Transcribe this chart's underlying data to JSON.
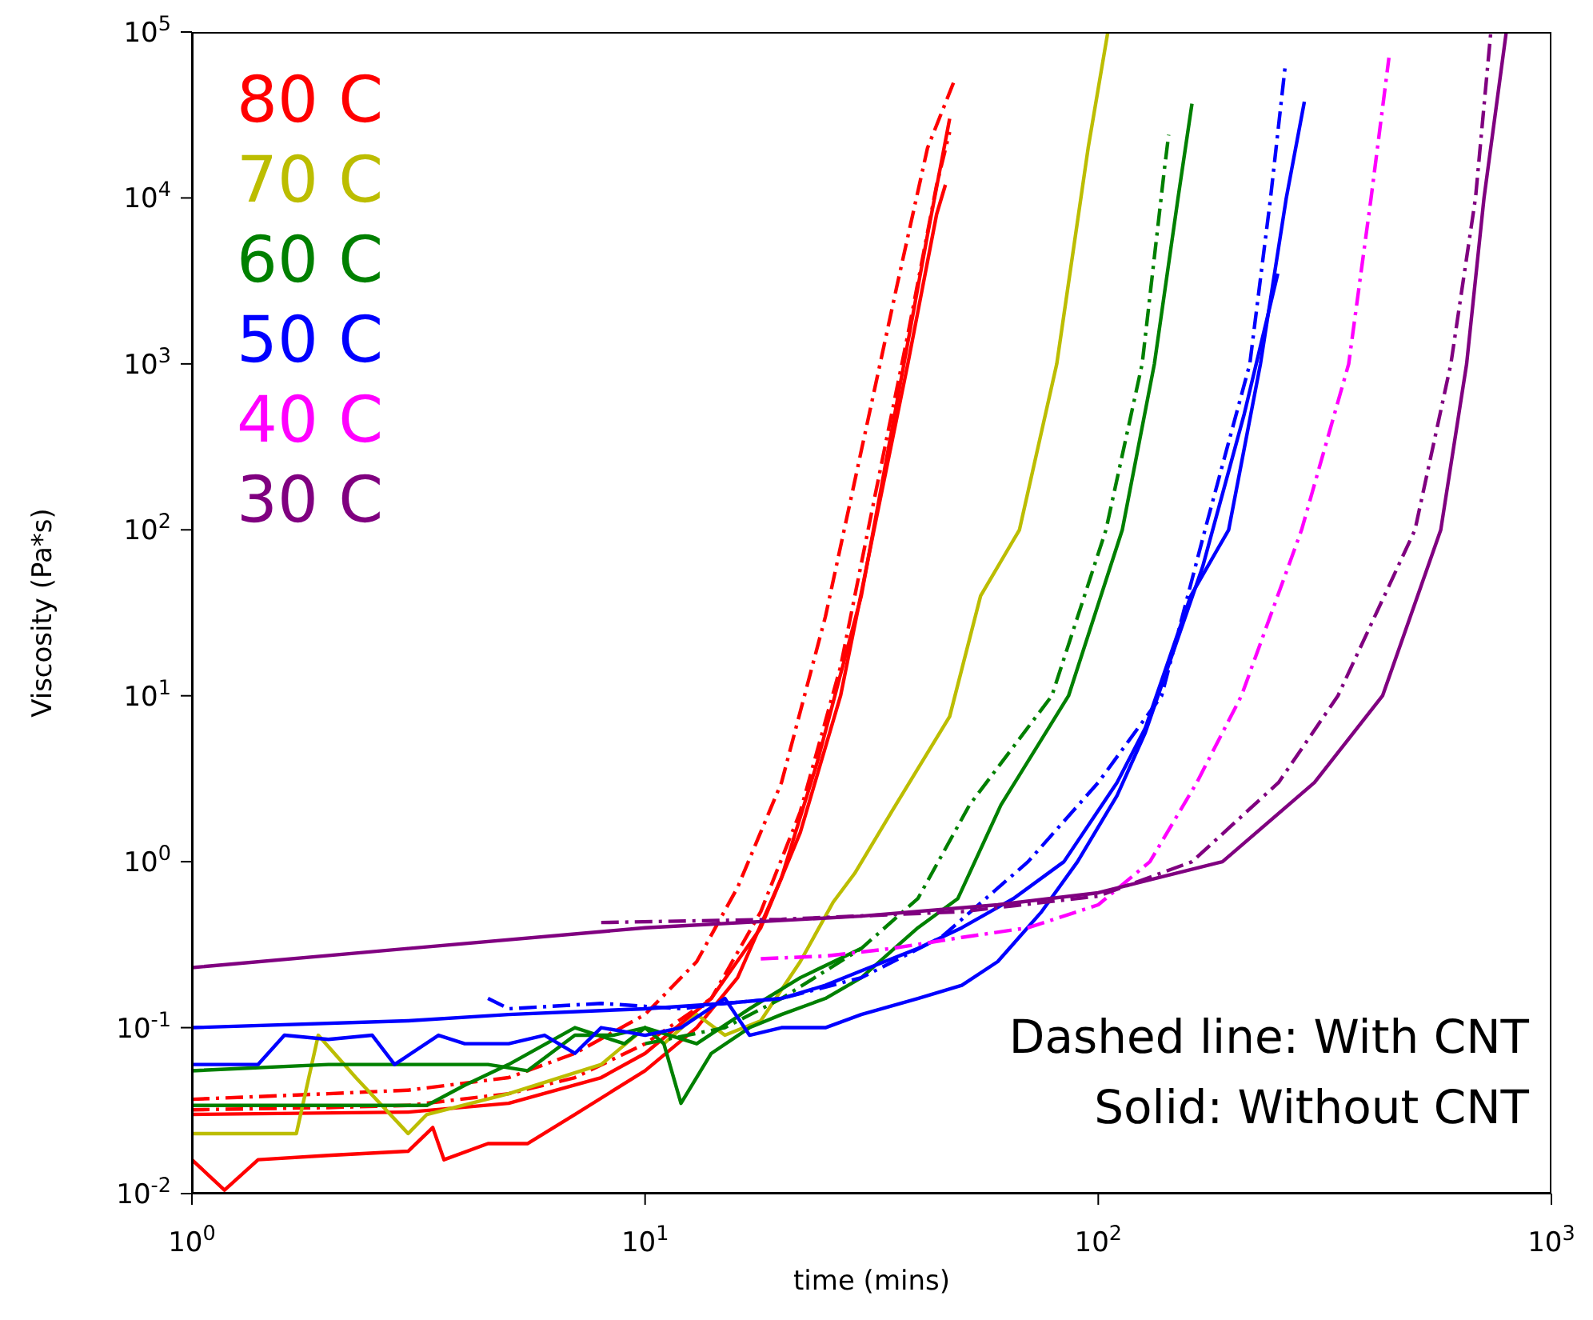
{
  "chart_data": {
    "type": "line",
    "xlabel": "time (mins)",
    "ylabel": "Viscosity (Pa*s)",
    "log": "xy",
    "grid": false,
    "legend": "top left",
    "marker": "none",
    "xlim": [
      1,
      1000
    ],
    "ylim": [
      0.01,
      100000
    ],
    "xticks": [
      {
        "value": 1,
        "label": "10$^{0}$"
      },
      {
        "value": 10,
        "label": "10$^{1}$"
      },
      {
        "value": 100,
        "label": "10$^{2}$"
      },
      {
        "value": 1000,
        "label": "10$^{3}$"
      }
    ],
    "yticks": [
      {
        "value": 0.01,
        "label": "10$^{-2}$"
      },
      {
        "value": 0.1,
        "label": "10$^{-1}$"
      },
      {
        "value": 1,
        "label": "10$^{0}$"
      },
      {
        "value": 10,
        "label": "10$^{1}$"
      },
      {
        "value": 100,
        "label": "10$^{2}$"
      },
      {
        "value": 1000,
        "label": "10$^{3}$"
      },
      {
        "value": 10000,
        "label": "10$^{4}$"
      },
      {
        "value": 100000,
        "label": "10$^{5}$"
      }
    ],
    "annotations": [
      "Dashed line: With CNT",
      "Solid: Without CNT"
    ],
    "series": [
      {
        "name": "80 C",
        "color": "#ff0000",
        "line_style": "solid",
        "x": [
          1,
          1.18,
          1.4,
          2,
          3,
          3.4,
          3.6,
          4.5,
          5.5,
          7,
          10,
          13,
          16,
          20,
          24,
          30,
          36,
          42,
          47
        ],
        "values": [
          0.016,
          0.0105,
          0.016,
          0.017,
          0.018,
          0.025,
          0.016,
          0.02,
          0.02,
          0.03,
          0.055,
          0.1,
          0.2,
          0.8,
          4,
          40,
          600,
          6000,
          30000
        ]
      },
      {
        "color": "#ff0000",
        "line_style": "solid",
        "x": [
          1,
          3,
          5,
          8,
          10,
          14,
          18,
          22,
          27,
          32,
          38,
          44,
          46
        ],
        "values": [
          0.03,
          0.031,
          0.035,
          0.05,
          0.07,
          0.15,
          0.4,
          1.5,
          10,
          100,
          1000,
          8000,
          12000
        ]
      },
      {
        "color": "#ff0000",
        "line_style": "dashed",
        "x": [
          1,
          2,
          3,
          5,
          7,
          10,
          13,
          16,
          20,
          25,
          30,
          36,
          42,
          48
        ],
        "values": [
          0.037,
          0.04,
          0.042,
          0.05,
          0.07,
          0.12,
          0.25,
          0.7,
          3,
          30,
          300,
          3000,
          20000,
          50000
        ]
      },
      {
        "color": "#ff0000",
        "line_style": "dashed",
        "x": [
          1,
          2,
          3,
          5,
          7,
          10,
          14,
          18,
          22,
          27,
          32,
          38,
          44,
          47
        ],
        "values": [
          0.032,
          0.033,
          0.034,
          0.04,
          0.05,
          0.08,
          0.15,
          0.5,
          2,
          15,
          150,
          1500,
          12000,
          25000
        ]
      },
      {
        "name": "70 C",
        "color": "#bcbd00",
        "line_style": "solid",
        "x": [
          1,
          1.7,
          1.9,
          2.3,
          3,
          3.3,
          5,
          8,
          10,
          11,
          13,
          15,
          18,
          22,
          26,
          29,
          35,
          47,
          55,
          67,
          81,
          95,
          105
        ],
        "values": [
          0.023,
          0.023,
          0.09,
          0.05,
          0.023,
          0.03,
          0.04,
          0.06,
          0.1,
          0.08,
          0.12,
          0.09,
          0.11,
          0.25,
          0.57,
          0.85,
          2,
          7.5,
          40,
          100,
          1000,
          20000,
          100000
        ]
      },
      {
        "name": "60 C",
        "color": "#008000",
        "line_style": "solid",
        "x": [
          1,
          2,
          3,
          4.5,
          5.5,
          7,
          8.5,
          10,
          11,
          12,
          14,
          17,
          20,
          25,
          30,
          40,
          49,
          61,
          86,
          113,
          133,
          150,
          161
        ],
        "values": [
          0.055,
          0.06,
          0.06,
          0.06,
          0.055,
          0.09,
          0.09,
          0.1,
          0.08,
          0.035,
          0.07,
          0.1,
          0.12,
          0.15,
          0.2,
          0.4,
          0.6,
          2.2,
          10,
          100,
          1000,
          10000,
          37000
        ]
      },
      {
        "color": "#008000",
        "line_style": "solid",
        "x": [
          1,
          3.3,
          4,
          5,
          7,
          9,
          10,
          13,
          17,
          22,
          30
        ],
        "values": [
          0.034,
          0.034,
          0.045,
          0.06,
          0.1,
          0.08,
          0.1,
          0.08,
          0.13,
          0.2,
          0.3
        ]
      },
      {
        "color": "#008000",
        "line_style": "dashed",
        "x": [
          10,
          15,
          20,
          30,
          40,
          52,
          79,
          104,
          125,
          140,
          143
        ],
        "values": [
          0.08,
          0.1,
          0.15,
          0.3,
          0.6,
          2.2,
          10,
          100,
          1000,
          15000,
          24000
        ]
      },
      {
        "name": "50 C",
        "color": "#0000ff",
        "line_style": "solid",
        "x": [
          1,
          3,
          5,
          10,
          15,
          20,
          25,
          30,
          40,
          50,
          65,
          84,
          110,
          127,
          160,
          194,
          228,
          260,
          285
        ],
        "values": [
          0.1,
          0.11,
          0.12,
          0.13,
          0.14,
          0.15,
          0.18,
          0.22,
          0.3,
          0.4,
          0.6,
          1,
          3,
          6.4,
          40,
          100,
          1000,
          10000,
          38000
        ]
      },
      {
        "color": "#0000ff",
        "line_style": "solid",
        "x": [
          1,
          1.4,
          1.6,
          2,
          2.5,
          2.8,
          3.5,
          4,
          5,
          6,
          7,
          8,
          10,
          12,
          15,
          17,
          20,
          25,
          30,
          40,
          50,
          60,
          75,
          90,
          110,
          127,
          170,
          210,
          249
        ],
        "values": [
          0.06,
          0.06,
          0.09,
          0.085,
          0.09,
          0.06,
          0.09,
          0.08,
          0.08,
          0.09,
          0.07,
          0.1,
          0.09,
          0.1,
          0.15,
          0.09,
          0.1,
          0.1,
          0.12,
          0.15,
          0.18,
          0.25,
          0.5,
          1,
          2.5,
          6,
          60,
          500,
          3500
        ]
      },
      {
        "color": "#0000ff",
        "line_style": "dashed",
        "x": [
          4.5,
          5,
          8,
          12,
          15,
          20,
          30,
          45,
          70,
          100,
          138,
          172,
          216,
          240,
          259
        ],
        "values": [
          0.15,
          0.13,
          0.14,
          0.13,
          0.14,
          0.15,
          0.2,
          0.35,
          1,
          3,
          10,
          100,
          1000,
          10000,
          65000
        ]
      },
      {
        "name": "40 C",
        "color": "#ff00ff",
        "line_style": "dashed",
        "x": [
          18,
          25,
          35,
          50,
          70,
          100,
          130,
          165,
          207,
          281,
          357,
          400,
          438
        ],
        "values": [
          0.26,
          0.27,
          0.3,
          0.35,
          0.4,
          0.55,
          1,
          3,
          10,
          100,
          1000,
          10000,
          70000
        ]
      },
      {
        "name": "30 C",
        "color": "#800080",
        "line_style": "solid",
        "x": [
          1,
          3,
          10,
          30,
          60,
          100,
          188,
          300,
          424,
          570,
          650,
          710,
          795
        ],
        "values": [
          0.23,
          0.3,
          0.4,
          0.47,
          0.55,
          0.65,
          1,
          3,
          10,
          100,
          1000,
          10000,
          100000
        ]
      },
      {
        "color": "#800080",
        "line_style": "dashed",
        "x": [
          8,
          20,
          50,
          100,
          161,
          250,
          338,
          500,
          600,
          680,
          735
        ],
        "values": [
          0.43,
          0.45,
          0.5,
          0.62,
          1,
          3,
          10,
          100,
          1000,
          10000,
          100000
        ]
      }
    ]
  }
}
